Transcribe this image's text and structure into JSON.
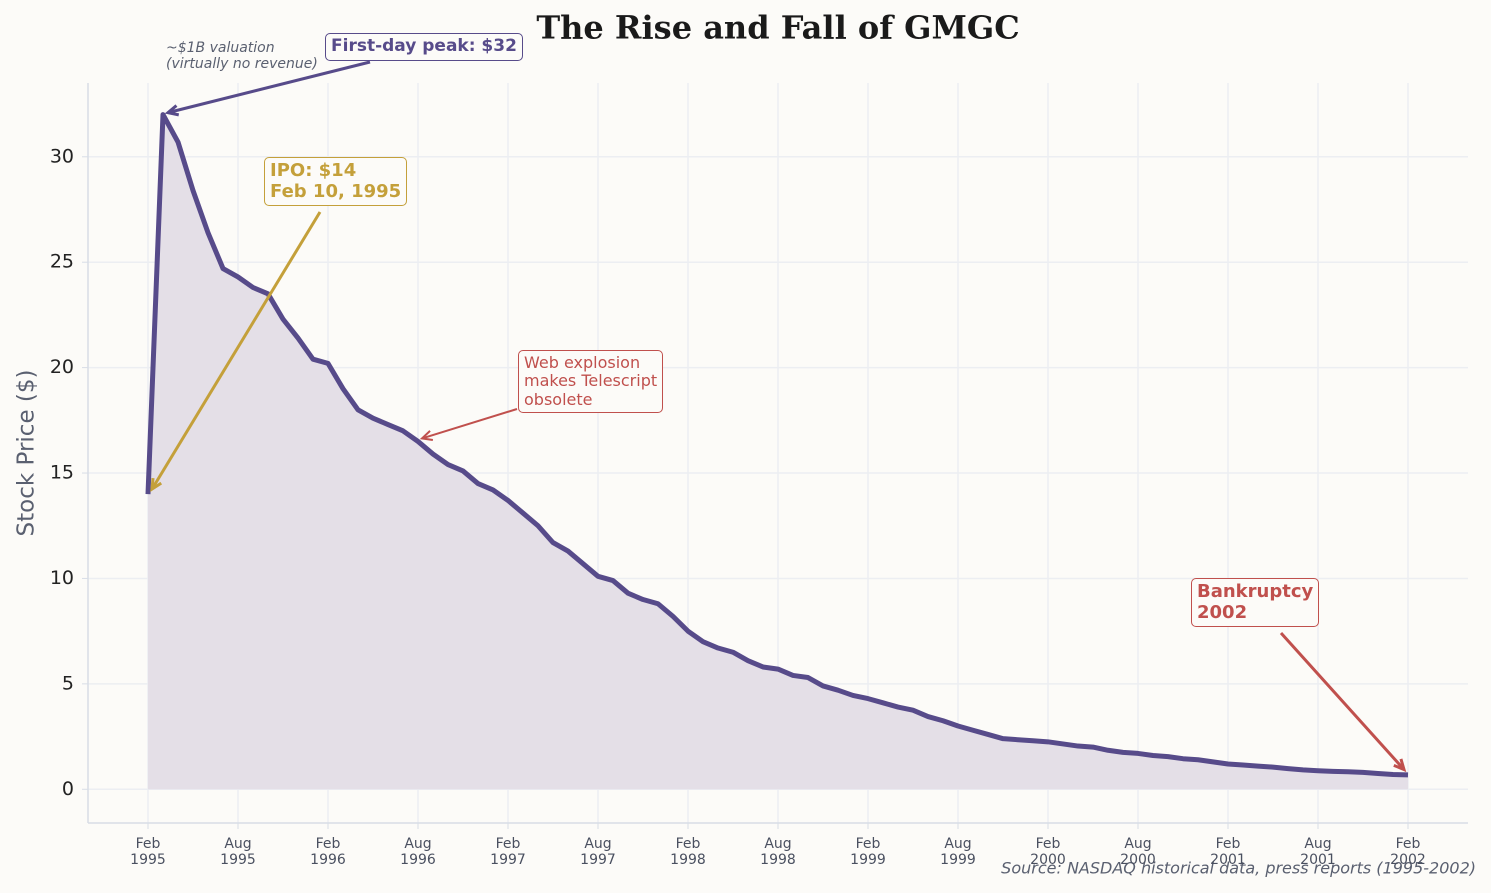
{
  "chart_data": {
    "type": "line",
    "title": "The Rise and Fall of GMGC",
    "y_label": "Stock Price ($)",
    "source": "Source: NASDAQ historical data, press reports (1995-2002)",
    "x": [
      "1995-02",
      "1995-03",
      "1995-04",
      "1995-05",
      "1995-06",
      "1995-07",
      "1995-08",
      "1995-09",
      "1995-10",
      "1995-11",
      "1995-12",
      "1996-01",
      "1996-02",
      "1996-03",
      "1996-04",
      "1996-05",
      "1996-06",
      "1996-07",
      "1996-08",
      "1996-09",
      "1996-10",
      "1996-11",
      "1996-12",
      "1997-01",
      "1997-02",
      "1997-03",
      "1997-04",
      "1997-05",
      "1997-06",
      "1997-07",
      "1997-08",
      "1997-09",
      "1997-10",
      "1997-11",
      "1997-12",
      "1998-01",
      "1998-02",
      "1998-03",
      "1998-04",
      "1998-05",
      "1998-06",
      "1998-07",
      "1998-08",
      "1998-09",
      "1998-10",
      "1998-11",
      "1998-12",
      "1999-01",
      "1999-02",
      "1999-03",
      "1999-04",
      "1999-05",
      "1999-06",
      "1999-07",
      "1999-08",
      "1999-09",
      "1999-10",
      "1999-11",
      "1999-12",
      "2000-01",
      "2000-02",
      "2000-03",
      "2000-04",
      "2000-05",
      "2000-06",
      "2000-07",
      "2000-08",
      "2000-09",
      "2000-10",
      "2000-11",
      "2000-12",
      "2001-01",
      "2001-02",
      "2001-03",
      "2001-04",
      "2001-05",
      "2001-06",
      "2001-07",
      "2001-08",
      "2001-09",
      "2001-10",
      "2001-11",
      "2001-12",
      "2002-01",
      "2002-02"
    ],
    "series": [
      {
        "name": "GMGC",
        "color": "#574b8a",
        "fill": "#e4dfe7",
        "values": [
          14,
          32,
          30.7,
          28.4,
          26.4,
          24.7,
          24.3,
          23.8,
          23.5,
          22.3,
          21.4,
          20.4,
          20.2,
          19.0,
          18.0,
          17.6,
          17.3,
          17.0,
          16.5,
          15.9,
          15.4,
          15.1,
          14.5,
          14.2,
          13.7,
          13.1,
          12.5,
          11.7,
          11.3,
          10.7,
          10.1,
          9.9,
          9.3,
          9.0,
          8.8,
          8.2,
          7.5,
          7.0,
          6.7,
          6.5,
          6.1,
          5.8,
          5.7,
          5.4,
          5.3,
          4.9,
          4.7,
          4.45,
          4.3,
          4.1,
          3.9,
          3.75,
          3.45,
          3.25,
          3.0,
          2.8,
          2.6,
          2.4,
          2.35,
          2.3,
          2.25,
          2.15,
          2.05,
          2.0,
          1.85,
          1.75,
          1.7,
          1.6,
          1.55,
          1.45,
          1.4,
          1.3,
          1.2,
          1.15,
          1.1,
          1.05,
          0.98,
          0.92,
          0.88,
          0.85,
          0.83,
          0.8,
          0.75,
          0.7,
          0.68
        ]
      }
    ],
    "xlim": [
      "1994-10",
      "2002-06"
    ],
    "ylim": [
      -1.6,
      33.5
    ],
    "yticks": [
      0,
      5,
      10,
      15,
      20,
      25,
      30
    ],
    "xticks": [
      {
        "value": "1995-02",
        "label": "Feb\n1995"
      },
      {
        "value": "1995-08",
        "label": "Aug\n1995"
      },
      {
        "value": "1996-02",
        "label": "Feb\n1996"
      },
      {
        "value": "1996-08",
        "label": "Aug\n1996"
      },
      {
        "value": "1997-02",
        "label": "Feb\n1997"
      },
      {
        "value": "1997-08",
        "label": "Aug\n1997"
      },
      {
        "value": "1998-02",
        "label": "Feb\n1998"
      },
      {
        "value": "1998-08",
        "label": "Aug\n1998"
      },
      {
        "value": "1999-02",
        "label": "Feb\n1999"
      },
      {
        "value": "1999-08",
        "label": "Aug\n1999"
      },
      {
        "value": "2000-02",
        "label": "Feb\n2000"
      },
      {
        "value": "2000-08",
        "label": "Aug\n2000"
      },
      {
        "value": "2001-02",
        "label": "Feb\n2001"
      },
      {
        "value": "2001-08",
        "label": "Aug\n2001"
      },
      {
        "value": "2002-02",
        "label": "Feb\n2002"
      }
    ],
    "grid": true,
    "annotations": [
      {
        "text": "First-day peak: $32",
        "color": "#574b8a"
      },
      {
        "text": "~$1B valuation\n(virtually no revenue)",
        "color": "#5a6070"
      },
      {
        "text": "IPO: $14\nFeb 10, 1995",
        "color": "#c4a03a"
      },
      {
        "text": "Web explosion\nmakes Telescript\nobsolete",
        "color": "#c0504d"
      },
      {
        "text": "Bankruptcy\n2002",
        "color": "#c0504d"
      }
    ]
  }
}
